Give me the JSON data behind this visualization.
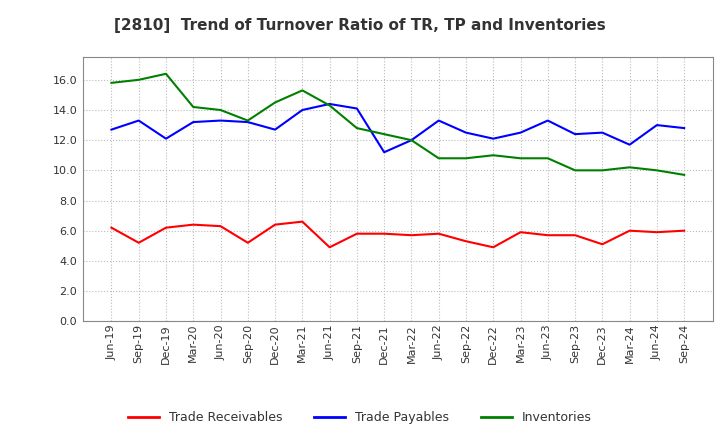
{
  "title": "[2810]  Trend of Turnover Ratio of TR, TP and Inventories",
  "x_labels": [
    "Jun-19",
    "Sep-19",
    "Dec-19",
    "Mar-20",
    "Jun-20",
    "Sep-20",
    "Dec-20",
    "Mar-21",
    "Jun-21",
    "Sep-21",
    "Dec-21",
    "Mar-22",
    "Jun-22",
    "Sep-22",
    "Dec-22",
    "Mar-23",
    "Jun-23",
    "Sep-23",
    "Dec-23",
    "Mar-24",
    "Jun-24",
    "Sep-24"
  ],
  "trade_receivables": [
    6.2,
    5.2,
    6.2,
    6.4,
    6.3,
    5.2,
    6.4,
    6.6,
    4.9,
    5.8,
    5.8,
    5.7,
    5.8,
    5.3,
    4.9,
    5.9,
    5.7,
    5.7,
    5.1,
    6.0,
    5.9,
    6.0
  ],
  "trade_payables": [
    12.7,
    13.3,
    12.1,
    13.2,
    13.3,
    13.2,
    12.7,
    14.0,
    14.4,
    14.1,
    11.2,
    12.0,
    13.3,
    12.5,
    12.1,
    12.5,
    13.3,
    12.4,
    12.5,
    11.7,
    13.0,
    12.8
  ],
  "inventories": [
    15.8,
    16.0,
    16.4,
    14.2,
    14.0,
    13.3,
    14.5,
    15.3,
    14.3,
    12.8,
    12.4,
    12.0,
    10.8,
    10.8,
    11.0,
    10.8,
    10.8,
    10.0,
    10.0,
    10.2,
    10.0,
    9.7
  ],
  "tr_color": "#ff0000",
  "tp_color": "#0000ff",
  "inv_color": "#008000",
  "ylim": [
    0.0,
    17.5
  ],
  "yticks": [
    0.0,
    2.0,
    4.0,
    6.0,
    8.0,
    10.0,
    12.0,
    14.0,
    16.0
  ],
  "legend_labels": [
    "Trade Receivables",
    "Trade Payables",
    "Inventories"
  ],
  "background_color": "#ffffff",
  "grid_color": "#bbbbbb",
  "text_color": "#333333",
  "title_fontsize": 11,
  "tick_fontsize": 8,
  "legend_fontsize": 9
}
